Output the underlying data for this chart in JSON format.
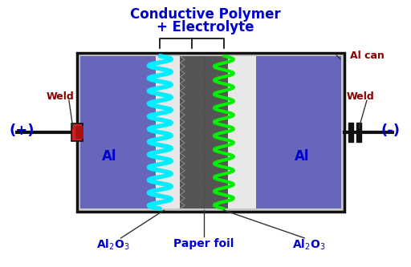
{
  "fig_width": 5.12,
  "fig_height": 3.33,
  "dpi": 100,
  "bg_color": "#ffffff",
  "title_line1": "Conductive Polymer",
  "title_line2": "+ Electrolyte",
  "title_color": "#0000cc",
  "title_fontsize": 12,
  "label_Al_left": "Al",
  "label_Al_right": "Al",
  "label_paper": "Paper foil",
  "label_alcan": "Al can",
  "label_weld_left": "Weld",
  "label_weld_right": "Weld",
  "label_plus": "(+)",
  "label_minus": "(-)",
  "label_color_blue": "#0000cc",
  "label_color_dark_red": "#8b0000",
  "label_color_black": "#000000",
  "can_color": "#c8c8c8",
  "can_border": "#111111",
  "al_blue": "#6666bb",
  "paper_white": "#e8e8e8",
  "paper_dark": "#555555",
  "paper_light": "#d0d0d0"
}
